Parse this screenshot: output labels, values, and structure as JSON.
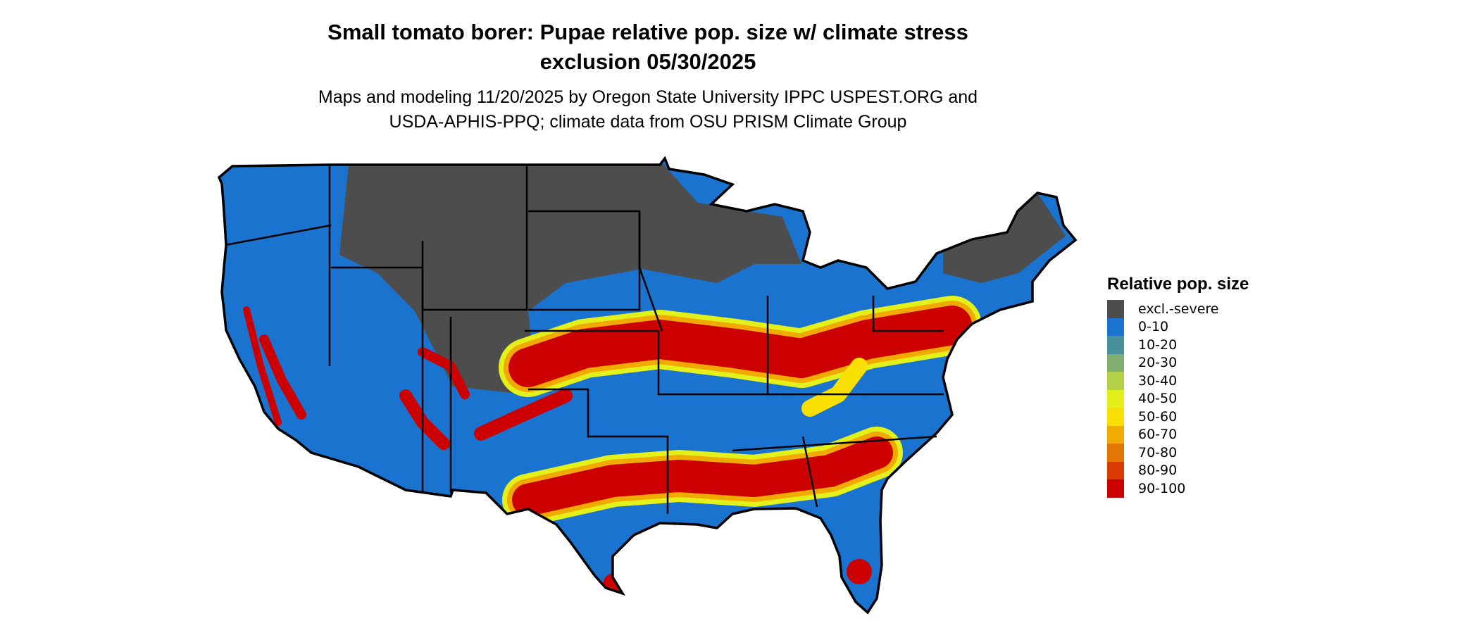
{
  "title": {
    "line1": "Small tomato borer: Pupae relative pop. size w/ climate stress",
    "line2": "exclusion 05/30/2025"
  },
  "subtitle": {
    "line1": "Maps and modeling 11/20/2025 by Oregon State University IPPC USPEST.ORG and",
    "line2": "USDA-APHIS-PPQ; climate data from OSU PRISM Climate Group"
  },
  "legend": {
    "title": "Relative pop. size",
    "items": [
      {
        "label": "excl.-severe",
        "color": "#4d4d4d"
      },
      {
        "label": "0-10",
        "color": "#1a73cf"
      },
      {
        "label": "10-20",
        "color": "#48909c"
      },
      {
        "label": "20-30",
        "color": "#7fae6e"
      },
      {
        "label": "30-40",
        "color": "#b2d147"
      },
      {
        "label": "40-50",
        "color": "#e3f01a"
      },
      {
        "label": "50-60",
        "color": "#f9e001"
      },
      {
        "label": "60-70",
        "color": "#f0aa02"
      },
      {
        "label": "70-80",
        "color": "#e37502"
      },
      {
        "label": "80-90",
        "color": "#d83a01"
      },
      {
        "label": "90-100",
        "color": "#cc0000"
      }
    ]
  }
}
